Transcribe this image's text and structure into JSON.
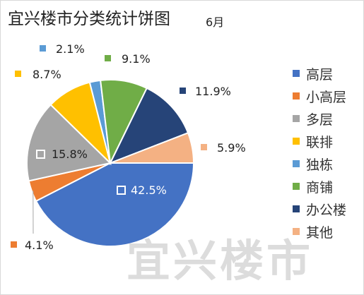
{
  "header": {
    "title": "宜兴楼市分类统计饼图",
    "subtitle": "6月"
  },
  "watermark": "宜兴楼市",
  "colors": {
    "gaoceng": "#4472c4",
    "xiaogaoceng": "#ed7d31",
    "duoceng": "#a5a5a5",
    "lianpai": "#ffc000",
    "dudong": "#5b9bd5",
    "shangpu": "#70ad47",
    "bangonglou": "#264478",
    "qita": "#f4b183"
  },
  "chart_data": {
    "type": "pie",
    "title": "宜兴楼市分类统计饼图",
    "subtitle": "6月",
    "legend_position": "right",
    "slices": [
      {
        "label": "高层",
        "value": 42.5,
        "value_label": "42.5%",
        "color": "#4472c4"
      },
      {
        "label": "小高层",
        "value": 4.1,
        "value_label": "4.1%",
        "color": "#ed7d31"
      },
      {
        "label": "多层",
        "value": 15.8,
        "value_label": "15.8%",
        "color": "#a5a5a5"
      },
      {
        "label": "联排",
        "value": 8.7,
        "value_label": "8.7%",
        "color": "#ffc000"
      },
      {
        "label": "独栋",
        "value": 2.1,
        "value_label": "2.1%",
        "color": "#5b9bd5"
      },
      {
        "label": "商铺",
        "value": 9.1,
        "value_label": "9.1%",
        "color": "#70ad47"
      },
      {
        "label": "办公楼",
        "value": 11.9,
        "value_label": "11.9%",
        "color": "#264478"
      },
      {
        "label": "其他",
        "value": 5.9,
        "value_label": "5.9%",
        "color": "#f4b183"
      }
    ]
  }
}
